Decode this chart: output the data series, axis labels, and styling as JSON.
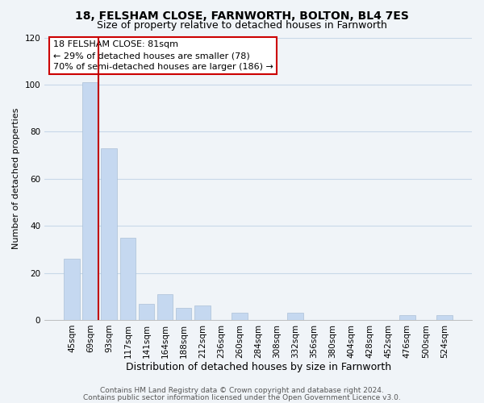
{
  "title": "18, FELSHAM CLOSE, FARNWORTH, BOLTON, BL4 7ES",
  "subtitle": "Size of property relative to detached houses in Farnworth",
  "xlabel": "Distribution of detached houses by size in Farnworth",
  "ylabel": "Number of detached properties",
  "bar_labels": [
    "45sqm",
    "69sqm",
    "93sqm",
    "117sqm",
    "141sqm",
    "164sqm",
    "188sqm",
    "212sqm",
    "236sqm",
    "260sqm",
    "284sqm",
    "308sqm",
    "332sqm",
    "356sqm",
    "380sqm",
    "404sqm",
    "428sqm",
    "452sqm",
    "476sqm",
    "500sqm",
    "524sqm"
  ],
  "bar_values": [
    26,
    101,
    73,
    35,
    7,
    11,
    5,
    6,
    0,
    3,
    0,
    0,
    3,
    0,
    0,
    0,
    0,
    0,
    2,
    0,
    2
  ],
  "bar_color": "#c5d8f0",
  "red_line_bar_index": 1,
  "ylim": [
    0,
    120
  ],
  "yticks": [
    0,
    20,
    40,
    60,
    80,
    100,
    120
  ],
  "annotation_title": "18 FELSHAM CLOSE: 81sqm",
  "annotation_line1": "← 29% of detached houses are smaller (78)",
  "annotation_line2": "70% of semi-detached houses are larger (186) →",
  "footer_line1": "Contains HM Land Registry data © Crown copyright and database right 2024.",
  "footer_line2": "Contains public sector information licensed under the Open Government Licence v3.0.",
  "background_color": "#f0f4f8",
  "grid_color": "#c8d8e8",
  "title_fontsize": 10,
  "subtitle_fontsize": 9,
  "xlabel_fontsize": 9,
  "ylabel_fontsize": 8,
  "tick_fontsize": 7.5,
  "footer_fontsize": 6.5,
  "ann_fontsize": 8
}
